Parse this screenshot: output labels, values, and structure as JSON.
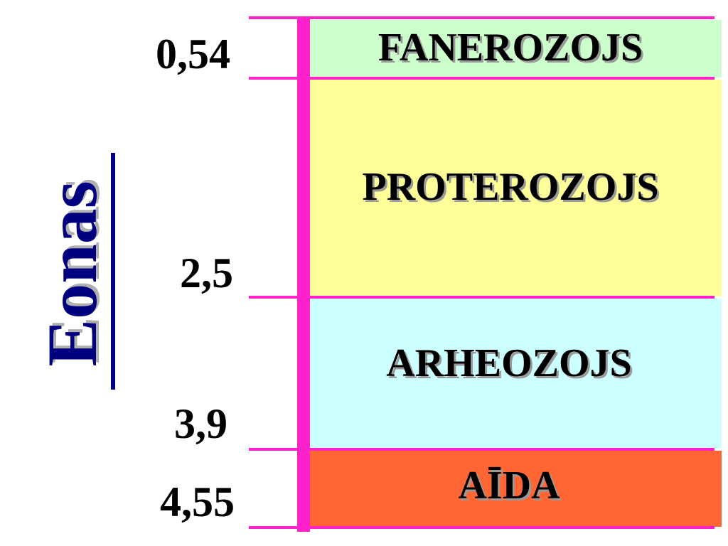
{
  "title": "Eonas",
  "boundaries": [
    "0,54",
    "2,5",
    "3,9",
    "4,55"
  ],
  "eons": [
    "FANEROZOJS",
    "PROTEROZOJS",
    "ARHEOZOJS",
    "AĪDA"
  ]
}
